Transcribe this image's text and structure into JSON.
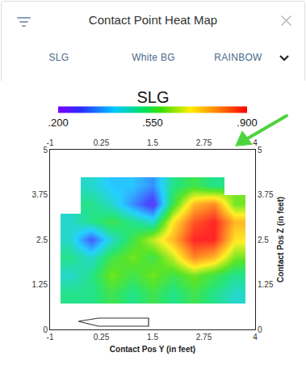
{
  "header": {
    "title": "Contact Point Heat Map",
    "tabs": [
      "SLG",
      "White BG",
      "RAINBOW"
    ]
  },
  "chart_data": {
    "type": "heatmap",
    "title": "SLG",
    "xlabel": "Contact Pos Y (in feet)",
    "ylabel": "Contact Pos Z (in feet)",
    "x": [
      -1,
      -0.5,
      0,
      0.5,
      1,
      1.5,
      2,
      2.5,
      3,
      3.5,
      4
    ],
    "y": [
      0,
      0.5,
      1,
      1.5,
      2,
      2.5,
      3,
      3.5,
      4,
      4.5,
      5
    ],
    "z": [
      [
        null,
        null,
        null,
        null,
        null,
        null,
        null,
        null,
        null,
        null,
        null
      ],
      [
        null,
        null,
        null,
        null,
        null,
        null,
        null,
        null,
        null,
        null,
        null
      ],
      [
        null,
        0.5,
        0.5,
        0.55,
        0.5,
        0.55,
        0.5,
        0.55,
        0.5,
        0.45,
        null
      ],
      [
        null,
        0.45,
        0.5,
        0.6,
        0.55,
        0.6,
        0.55,
        0.6,
        0.55,
        0.5,
        null
      ],
      [
        null,
        0.5,
        0.45,
        0.55,
        0.6,
        0.55,
        0.65,
        0.8,
        0.75,
        0.6,
        null
      ],
      [
        null,
        0.45,
        0.3,
        0.45,
        0.55,
        0.65,
        0.75,
        0.9,
        0.9,
        0.7,
        null
      ],
      [
        null,
        0.45,
        0.5,
        0.55,
        0.5,
        0.45,
        0.7,
        0.85,
        0.9,
        0.75,
        null
      ],
      [
        null,
        null,
        0.5,
        0.45,
        0.35,
        0.25,
        0.55,
        0.75,
        0.8,
        0.6,
        null
      ],
      [
        null,
        null,
        0.45,
        0.4,
        0.4,
        0.35,
        0.5,
        0.55,
        0.5,
        null,
        null
      ],
      [
        null,
        null,
        null,
        null,
        null,
        null,
        null,
        null,
        null,
        null,
        null
      ],
      [
        null,
        null,
        null,
        null,
        null,
        null,
        null,
        null,
        null,
        null,
        null
      ]
    ],
    "colorbar_range": [
      0.2,
      0.9
    ],
    "colorbar_ticks": [
      {
        "value": 0.2,
        "label": ".200"
      },
      {
        "value": 0.55,
        "label": ".550"
      },
      {
        "value": 0.9,
        "label": ".900"
      }
    ],
    "xlim": [
      -1,
      4
    ],
    "xticks": [
      -1,
      0.25,
      1.5,
      2.75,
      4
    ],
    "ylim": [
      0,
      5
    ],
    "yticks": [
      0,
      1.25,
      2.5,
      3.75,
      5
    ],
    "grid": false
  }
}
